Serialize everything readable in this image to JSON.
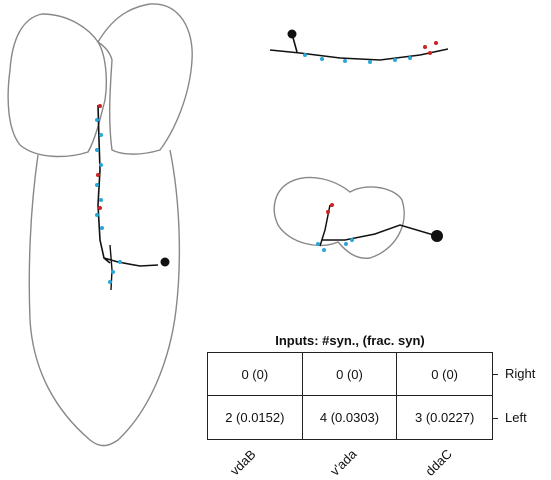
{
  "table": {
    "title": "Inputs: #syn., (frac. syn)",
    "rows": [
      {
        "label": "Right",
        "cells": [
          "0 (0)",
          "0 (0)",
          "0 (0)"
        ]
      },
      {
        "label": "Left",
        "cells": [
          "2 (0.0152)",
          "4 (0.0303)",
          "3 (0.0227)"
        ]
      }
    ],
    "columns": [
      "vdaB",
      "v'ada",
      "ddaC"
    ]
  },
  "colors": {
    "outline": "#888888",
    "neuron": "#111111",
    "synapse_input": "#2aa7d6",
    "synapse_output": "#cc2222"
  }
}
